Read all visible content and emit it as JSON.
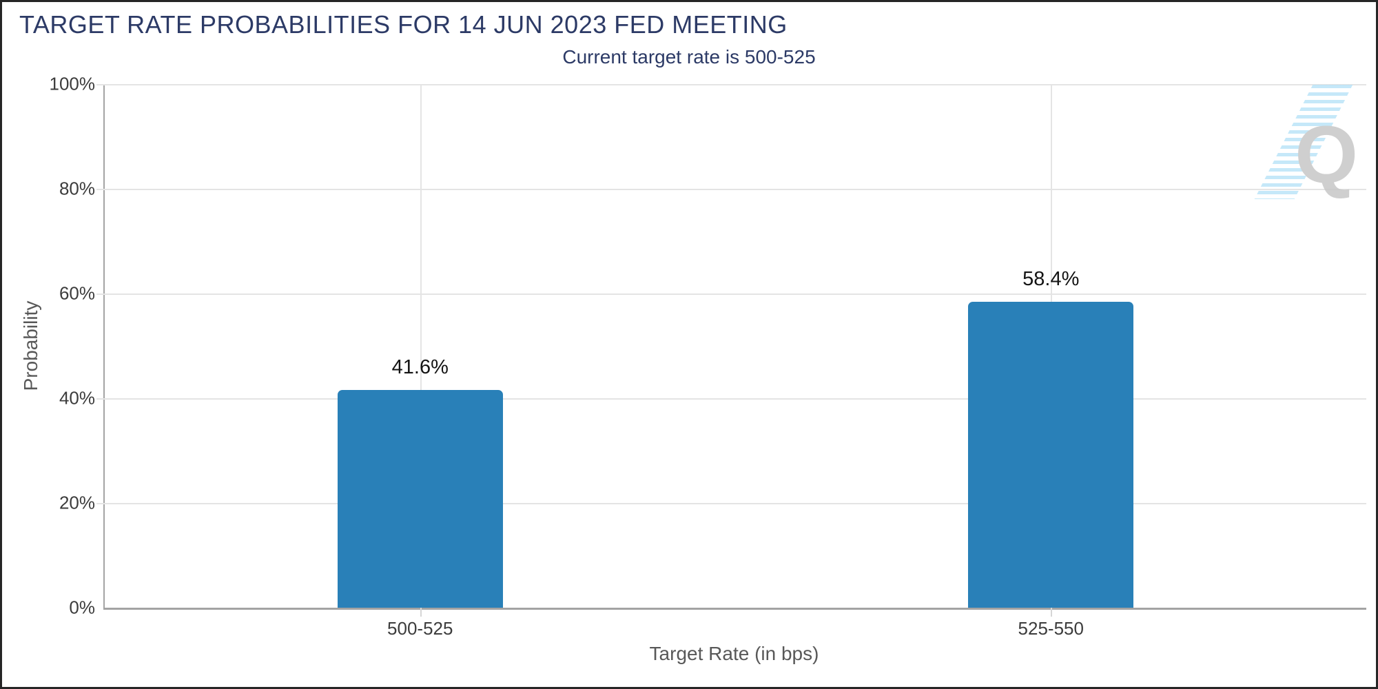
{
  "header": {
    "title": "TARGET RATE PROBABILITIES FOR 14 JUN 2023 FED MEETING",
    "subtitle": "Current target rate is 500-525"
  },
  "chart_data": {
    "type": "bar",
    "title": "TARGET RATE PROBABILITIES FOR 14 JUN 2023 FED MEETING",
    "subtitle": "Current target rate is 500-525",
    "categories": [
      "500-525",
      "525-550"
    ],
    "values": [
      41.6,
      58.4
    ],
    "value_labels": [
      "41.6%",
      "58.4%"
    ],
    "xlabel": "Target Rate (in bps)",
    "ylabel": "Probability",
    "ylim": [
      0,
      100
    ],
    "yticks": [
      "0%",
      "20%",
      "40%",
      "60%",
      "80%",
      "100%"
    ],
    "grid": true,
    "legend": false,
    "bar_color": "#2980b8"
  },
  "colors": {
    "title_navy": "#2c3a66",
    "bar_blue": "#2980b8",
    "tick_label": "#3c3c3c",
    "axis_title": "#585858",
    "gridline": "#e4e4e4",
    "axis_line": "#a3a3a3"
  },
  "watermark": {
    "letter": "Q",
    "stripe_color": "#b6e2f6"
  }
}
